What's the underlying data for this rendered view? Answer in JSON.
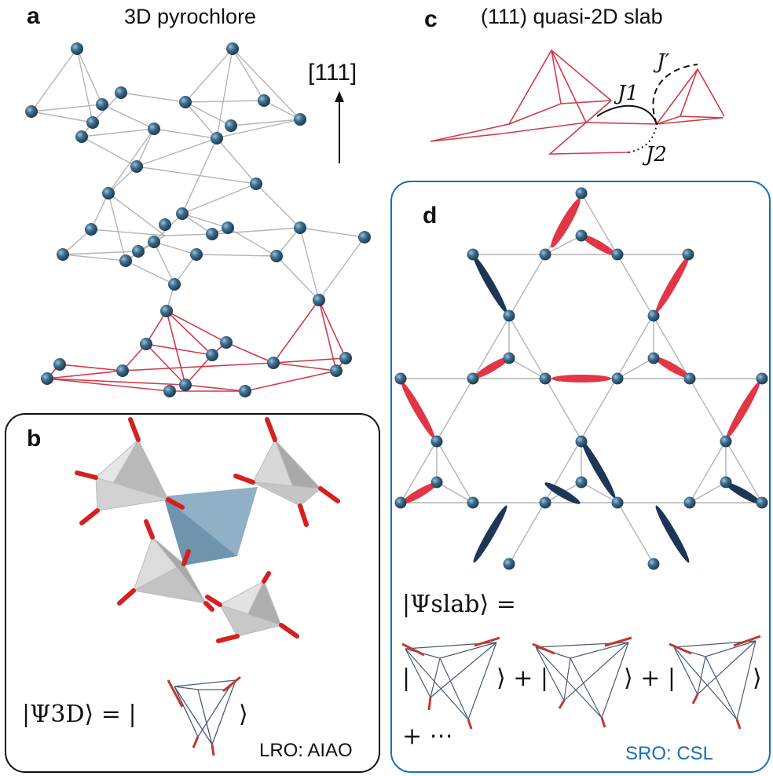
{
  "panels": {
    "a": {
      "letter": "a",
      "title": "3D pyrochlore",
      "direction": "[111]"
    },
    "b": {
      "letter": "b",
      "ket_lhs": "|Ψ3D⟩ = |",
      "ket_close": "⟩",
      "tag": "LRO: AIAO"
    },
    "c": {
      "letter": "c",
      "title": "(111) quasi-2D slab",
      "J1": "J1",
      "J2": "J2",
      "Jp": "J′"
    },
    "d": {
      "letter": "d",
      "ket_lhs": "|Ψslab⟩ =",
      "terms": [
        "|",
        "⟩ + |",
        "⟩ + |",
        "⟩"
      ],
      "ellipsis": "+ ⋯",
      "tag": "SRO: CSL"
    }
  },
  "colors": {
    "atom": "#3f6f8f",
    "bond_grey": "#b0b0b0",
    "bond_red": "#d23a4a",
    "arrow_red": "#d62020",
    "dimer_red": "#e23645",
    "dimer_navy": "#1d3557",
    "box_blue": "#1a6fb3",
    "tet_grey": "#c8c8c8",
    "tet_blue": "#5f88a5"
  }
}
